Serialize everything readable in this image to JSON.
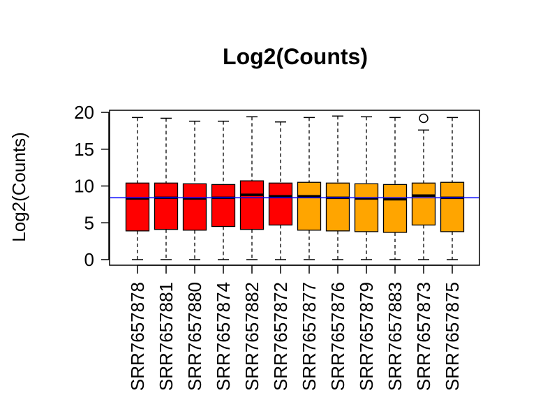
{
  "chart_data": {
    "type": "boxplot",
    "title": "Log2(Counts)",
    "ylabel": "Log2(Counts)",
    "xlabel": "",
    "ylim": [
      0,
      20
    ],
    "y_ticks": [
      0,
      5,
      10,
      15,
      20
    ],
    "reference_line": 8.4,
    "reference_line_color": "#0000ff",
    "grid": false,
    "colors": {
      "group1": "#ff0000",
      "group2": "#ffa500"
    },
    "categories": [
      "SRR7657878",
      "SRR7657881",
      "SRR7657880",
      "SRR7657874",
      "SRR7657882",
      "SRR7657872",
      "SRR7657877",
      "SRR7657876",
      "SRR7657879",
      "SRR7657883",
      "SRR7657873",
      "SRR7657875"
    ],
    "series": [
      {
        "category": "SRR7657878",
        "min": 0,
        "q1": 3.9,
        "median": 8.3,
        "q3": 10.4,
        "max": 19.3,
        "outliers": [],
        "color": "#ff0000"
      },
      {
        "category": "SRR7657881",
        "min": 0,
        "q1": 4.1,
        "median": 8.4,
        "q3": 10.4,
        "max": 19.2,
        "outliers": [],
        "color": "#ff0000"
      },
      {
        "category": "SRR7657880",
        "min": 0,
        "q1": 4.0,
        "median": 8.3,
        "q3": 10.3,
        "max": 18.8,
        "outliers": [],
        "color": "#ff0000"
      },
      {
        "category": "SRR7657874",
        "min": 0,
        "q1": 4.5,
        "median": 8.4,
        "q3": 10.2,
        "max": 18.8,
        "outliers": [],
        "color": "#ff0000"
      },
      {
        "category": "SRR7657882",
        "min": 0,
        "q1": 4.1,
        "median": 8.8,
        "q3": 10.7,
        "max": 19.4,
        "outliers": [],
        "color": "#ff0000"
      },
      {
        "category": "SRR7657872",
        "min": 0,
        "q1": 4.7,
        "median": 8.6,
        "q3": 10.4,
        "max": 18.7,
        "outliers": [],
        "color": "#ff0000"
      },
      {
        "category": "SRR7657877",
        "min": 0,
        "q1": 4.0,
        "median": 8.6,
        "q3": 10.5,
        "max": 19.3,
        "outliers": [],
        "color": "#ffa500"
      },
      {
        "category": "SRR7657876",
        "min": 0,
        "q1": 3.9,
        "median": 8.4,
        "q3": 10.4,
        "max": 19.5,
        "outliers": [],
        "color": "#ffa500"
      },
      {
        "category": "SRR7657879",
        "min": 0,
        "q1": 3.8,
        "median": 8.3,
        "q3": 10.3,
        "max": 19.4,
        "outliers": [],
        "color": "#ffa500"
      },
      {
        "category": "SRR7657883",
        "min": 0,
        "q1": 3.7,
        "median": 8.2,
        "q3": 10.2,
        "max": 19.3,
        "outliers": [],
        "color": "#ffa500"
      },
      {
        "category": "SRR7657873",
        "min": 0,
        "q1": 4.7,
        "median": 8.7,
        "q3": 10.4,
        "max": 17.6,
        "outliers": [
          19.2
        ],
        "color": "#ffa500"
      },
      {
        "category": "SRR7657875",
        "min": 0,
        "q1": 3.8,
        "median": 8.4,
        "q3": 10.5,
        "max": 19.3,
        "outliers": [],
        "color": "#ffa500"
      }
    ]
  }
}
